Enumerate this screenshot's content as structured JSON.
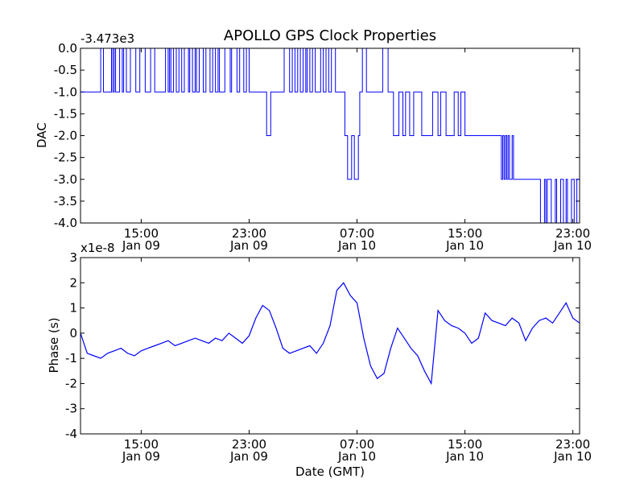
{
  "chart_data": {
    "title": "APOLLO GPS Clock Properties",
    "xlabel": "Date (GMT)",
    "x_tick_labels": [
      {
        "time": "15:00",
        "date": "Jan 09"
      },
      {
        "time": "23:00",
        "date": "Jan 09"
      },
      {
        "time": "07:00",
        "date": "Jan 10"
      },
      {
        "time": "15:00",
        "date": "Jan 10"
      },
      {
        "time": "23:00",
        "date": "Jan 10"
      }
    ],
    "x_tick_hours": [
      15,
      23,
      31,
      39,
      47
    ],
    "x_range_hours": [
      10.5,
      47.5
    ],
    "panels": [
      {
        "type": "line",
        "ylabel": "DAC",
        "offset_label": "-3.473e3",
        "ylim": [
          -4.0,
          0.0
        ],
        "y_ticks": [
          0.0,
          -0.5,
          -1.0,
          -1.5,
          -2.0,
          -2.5,
          -3.0,
          -3.5,
          -4.0
        ],
        "y_tick_labels": [
          "0.0",
          "-0.5",
          "-1.0",
          "-1.5",
          "-2.0",
          "-2.5",
          "-3.0",
          "-3.5",
          "-4.0"
        ],
        "color": "#0000ff",
        "series": [
          {
            "x": [
              10.5,
              10.9,
              12.0,
              12.2,
              12.8,
              12.9,
              13.0,
              13.1,
              13.4,
              13.6,
              13.7,
              13.9,
              14.2,
              14.6,
              14.9,
              15.3,
              15.7,
              16.0,
              16.8,
              17.0,
              17.1,
              17.2,
              17.4,
              17.6,
              17.8,
              18.0,
              18.2,
              18.5,
              18.6,
              18.8,
              19.0,
              19.1,
              19.3,
              19.6,
              19.8,
              20.1,
              20.3,
              20.5,
              20.7,
              20.8,
              21.2,
              21.6,
              21.7,
              22.1,
              22.3,
              22.6,
              22.8,
              23.0,
              23.4,
              23.6,
              24.3,
              24.6,
              25.4,
              25.6,
              26.0,
              26.2,
              26.4,
              26.6,
              26.8,
              27.0,
              27.2,
              27.3,
              27.5,
              27.7,
              27.9,
              28.3,
              28.5,
              28.7,
              28.9,
              29.1,
              29.4,
              29.7,
              30.1,
              30.3,
              30.6,
              30.8,
              31.1,
              31.2,
              31.3,
              31.4,
              31.7,
              32.4,
              32.9,
              33.3,
              33.5,
              33.7,
              34.1,
              34.4,
              34.6,
              34.9,
              35.2,
              35.8,
              36.6,
              37.0,
              37.2,
              37.6,
              38.0,
              38.2,
              38.5,
              38.7,
              39.0,
              39.4,
              40.1,
              40.4,
              40.7,
              41.0,
              41.3,
              41.7,
              41.8,
              41.9,
              42.0,
              42.1,
              42.2,
              42.3,
              42.5,
              42.6,
              42.7,
              43.3,
              44.4,
              44.6,
              44.9,
              45.0,
              45.1,
              45.4,
              45.7,
              45.8,
              46.1,
              46.3,
              46.5,
              46.6,
              46.9,
              47.1,
              47.3,
              47.5
            ],
            "y": [
              -1.0,
              -1.0,
              0.0,
              -1.0,
              0.0,
              -1.0,
              0.0,
              -1.0,
              0.0,
              -1.0,
              0.0,
              -1.0,
              0.0,
              -1.0,
              0.0,
              -1.0,
              0.0,
              -1.0,
              0.0,
              -1.0,
              0.0,
              -1.0,
              0.0,
              -1.0,
              0.0,
              -1.0,
              0.0,
              -1.0,
              0.0,
              -1.0,
              0.0,
              -1.0,
              0.0,
              -1.0,
              0.0,
              -1.0,
              0.0,
              -1.0,
              0.0,
              -1.0,
              0.0,
              -1.0,
              0.0,
              -1.0,
              0.0,
              -1.0,
              0.0,
              -1.0,
              -1.0,
              -1.0,
              -2.0,
              -1.0,
              -1.0,
              0.0,
              -1.0,
              0.0,
              -1.0,
              0.0,
              -1.0,
              0.0,
              -1.0,
              0.0,
              -1.0,
              0.0,
              -1.0,
              0.0,
              -1.0,
              0.0,
              -1.0,
              0.0,
              -1.0,
              -1.0,
              -2.0,
              -3.0,
              -2.0,
              -3.0,
              -2.0,
              -1.0,
              -1.0,
              0.0,
              -1.0,
              -1.0,
              0.0,
              -1.0,
              -1.0,
              -2.0,
              -1.0,
              -2.0,
              -1.0,
              -2.0,
              -1.0,
              -2.0,
              -1.0,
              -2.0,
              -1.0,
              -2.0,
              -2.0,
              -1.0,
              -2.0,
              -1.0,
              -2.0,
              -2.0,
              -2.0,
              -2.0,
              -2.0,
              -2.0,
              -2.0,
              -3.0,
              -2.0,
              -3.0,
              -2.0,
              -3.0,
              -2.0,
              -3.0,
              -2.0,
              -3.0,
              -3.0,
              -3.0,
              -3.0,
              -4.0,
              -3.0,
              -4.0,
              -3.0,
              -4.0,
              -3.0,
              -4.0,
              -3.0,
              -4.0,
              -3.0,
              -4.0,
              -3.0,
              -4.0,
              -3.0,
              -3.0
            ]
          }
        ]
      },
      {
        "type": "line",
        "ylabel": "Phase (s)",
        "offset_label": "x1e-8",
        "ylim": [
          -4,
          3
        ],
        "y_ticks": [
          3,
          2,
          1,
          0,
          -1,
          -2,
          -3,
          -4
        ],
        "y_tick_labels": [
          "3",
          "2",
          "1",
          "0",
          "-1",
          "-2",
          "-3",
          "-4"
        ],
        "color": "#0000ff",
        "series": [
          {
            "x": [
              10.5,
              11.0,
              11.5,
              12.0,
              12.5,
              13.0,
              13.5,
              14.0,
              14.5,
              15.0,
              15.5,
              16.0,
              16.5,
              17.0,
              17.5,
              18.0,
              18.5,
              19.0,
              19.5,
              20.0,
              20.5,
              21.0,
              21.5,
              22.0,
              22.5,
              23.0,
              23.5,
              24.0,
              24.5,
              25.0,
              25.5,
              26.0,
              26.5,
              27.0,
              27.5,
              28.0,
              28.5,
              29.0,
              29.5,
              30.0,
              30.5,
              31.0,
              31.5,
              32.0,
              32.5,
              33.0,
              33.5,
              34.0,
              34.5,
              35.0,
              35.5,
              36.0,
              36.5,
              37.0,
              37.5,
              38.0,
              38.5,
              39.0,
              39.5,
              40.0,
              40.5,
              41.0,
              41.5,
              42.0,
              42.5,
              43.0,
              43.5,
              44.0,
              44.5,
              45.0,
              45.5,
              46.0,
              46.5,
              47.0,
              47.5
            ],
            "y": [
              0.0,
              -0.8,
              -0.9,
              -1.0,
              -0.8,
              -0.7,
              -0.6,
              -0.8,
              -0.9,
              -0.7,
              -0.6,
              -0.5,
              -0.4,
              -0.3,
              -0.5,
              -0.4,
              -0.3,
              -0.2,
              -0.3,
              -0.4,
              -0.2,
              -0.3,
              0.0,
              -0.2,
              -0.4,
              -0.1,
              0.6,
              1.1,
              0.9,
              0.2,
              -0.6,
              -0.8,
              -0.7,
              -0.6,
              -0.5,
              -0.8,
              -0.4,
              0.3,
              1.7,
              2.0,
              1.5,
              1.2,
              -0.2,
              -1.3,
              -1.8,
              -1.6,
              -0.6,
              0.2,
              -0.2,
              -0.6,
              -0.9,
              -1.5,
              -2.0,
              0.9,
              0.5,
              0.3,
              0.2,
              0.0,
              -0.4,
              -0.2,
              0.8,
              0.5,
              0.4,
              0.3,
              0.6,
              0.4,
              -0.3,
              0.2,
              0.5,
              0.6,
              0.4,
              0.8,
              1.2,
              0.6,
              0.4
            ]
          }
        ]
      }
    ]
  }
}
